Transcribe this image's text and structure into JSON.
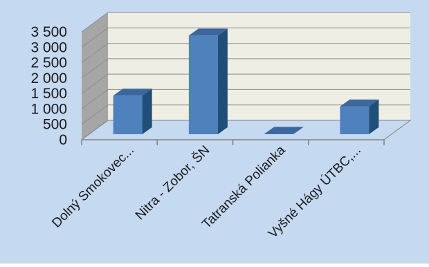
{
  "chart_data": {
    "type": "bar",
    "title": "",
    "xlabel": "",
    "ylabel": "",
    "categories": [
      "Dolný Smokovec...",
      "Nitra - Zobor, ŠN",
      "Tatranská Polianka",
      "Vyšné Hágy ÚTBC,..."
    ],
    "values": [
      1250,
      3200,
      10,
      900
    ],
    "ylim": [
      0,
      3500
    ],
    "yticks": [
      0,
      500,
      1000,
      1500,
      2000,
      2500,
      3000,
      3500
    ],
    "ytick_labels": [
      "0",
      "500",
      "1 000",
      "1 500",
      "2 000",
      "2 500",
      "3 000",
      "3 500"
    ],
    "grid": true,
    "legend": "none",
    "style": "3d-column"
  },
  "colors": {
    "background": "#c5d9f1",
    "back_wall": "#eeeee4",
    "side_wall": "#a6a6a6",
    "floor": "#c5d9f1",
    "bar_front": "#4f81bd",
    "bar_side": "#1f4e79",
    "bar_top": "#3b679c",
    "gridline": "#8c8c8c",
    "axis": "#808080"
  }
}
